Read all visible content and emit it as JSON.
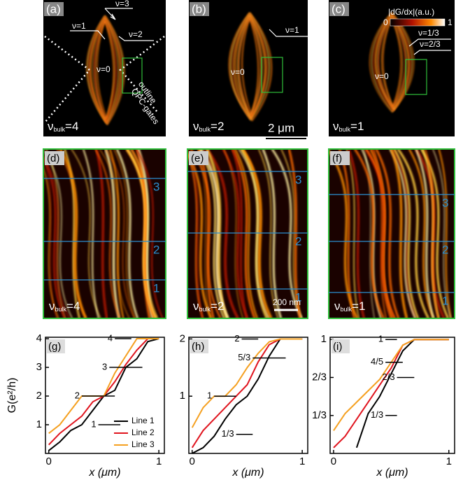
{
  "panels": [
    {
      "label": "(a)",
      "annotations": [
        "ν=3",
        "ν=1",
        "ν=2",
        "ν=0",
        "outline",
        "QPC-gates"
      ],
      "bulk": {
        "symbol": "ν",
        "sub": "bulk",
        "value": "=4"
      }
    },
    {
      "label": "(b)",
      "annotations": [
        "ν=1",
        "ν=0"
      ],
      "bulk": {
        "symbol": "ν",
        "sub": "bulk",
        "value": "=2"
      },
      "scale_bar": "2 μm"
    },
    {
      "label": "(c)",
      "annotations": [
        "ν=1/3",
        "ν=2/3",
        "ν=0"
      ],
      "bulk": {
        "symbol": "ν",
        "sub": "bulk",
        "value": "=1"
      },
      "colorbar": {
        "title": "|dG/dx|(a.u.)",
        "min": "0",
        "max": "1"
      }
    }
  ],
  "zoom_panels": [
    {
      "label": "(d)",
      "line_labels": [
        "3",
        "2",
        "1"
      ],
      "bulk": {
        "symbol": "ν",
        "sub": "bulk",
        "value": "=4"
      }
    },
    {
      "label": "(e)",
      "line_labels": [
        "3",
        "2",
        "1"
      ],
      "bulk": {
        "symbol": "ν",
        "sub": "bulk",
        "value": "=2"
      },
      "scale_bar": "200 nm"
    },
    {
      "label": "(f)",
      "line_labels": [
        "3",
        "2",
        "1"
      ],
      "bulk": {
        "symbol": "ν",
        "sub": "bulk",
        "value": "=1"
      }
    }
  ],
  "chart_data": [
    {
      "type": "line",
      "title": "(g)",
      "xlabel": "x (μm)",
      "ylabel": "G(e²/h)",
      "x": [
        0,
        0.1,
        0.2,
        0.3,
        0.4,
        0.5,
        0.6,
        0.7,
        0.8,
        0.9,
        1
      ],
      "series": [
        {
          "name": "Line 1",
          "color": "#000000",
          "values": [
            0.1,
            0.4,
            0.8,
            1.0,
            1.5,
            2.0,
            2.2,
            3.0,
            3.3,
            3.9,
            4
          ]
        },
        {
          "name": "Line 2",
          "color": "#e0141e",
          "values": [
            0.3,
            0.7,
            1.0,
            1.3,
            1.8,
            2.0,
            2.5,
            3.1,
            3.6,
            4,
            4
          ]
        },
        {
          "name": "Line 3",
          "color": "#f5a020",
          "values": [
            0.7,
            1.0,
            1.5,
            2.0,
            2.0,
            2.0,
            2.8,
            3.4,
            4,
            4,
            4
          ]
        }
      ],
      "plateaus": [
        {
          "label": "4",
          "value": 4,
          "x": [
            0.6,
            0.75
          ]
        },
        {
          "label": "3",
          "value": 3,
          "x": [
            0.55,
            0.85
          ]
        },
        {
          "label": "2",
          "value": 2,
          "x": [
            0.3,
            0.6
          ]
        },
        {
          "label": "1",
          "value": 1,
          "x": [
            0.45,
            0.65
          ]
        }
      ],
      "xlim": [
        -0.03,
        1.05
      ],
      "ylim": [
        0,
        4.05
      ],
      "xticks": [
        0,
        1
      ],
      "yticks": [
        1,
        2,
        3,
        4
      ],
      "legend": "lower right"
    },
    {
      "type": "line",
      "title": "(h)",
      "xlabel": "x (μm)",
      "x": [
        0,
        0.1,
        0.2,
        0.3,
        0.4,
        0.5,
        0.6,
        0.7,
        0.8,
        0.9,
        1
      ],
      "series": [
        {
          "name": "Line 1",
          "color": "#000000",
          "values": [
            0,
            0.1,
            0.3,
            0.6,
            0.85,
            1.0,
            1.3,
            1.7,
            2,
            2,
            2
          ]
        },
        {
          "name": "Line 2",
          "color": "#e0141e",
          "values": [
            0.1,
            0.4,
            0.6,
            0.8,
            1.0,
            1.2,
            1.6,
            1.9,
            2,
            2,
            2
          ]
        },
        {
          "name": "Line 3",
          "color": "#f5a020",
          "values": [
            0.45,
            0.8,
            1.0,
            1.0,
            1.2,
            1.5,
            1.75,
            1.95,
            2,
            2,
            2
          ]
        }
      ],
      "plateaus": [
        {
          "label": "2",
          "value": 2,
          "x": [
            0.45,
            0.6
          ]
        },
        {
          "label": "5/3",
          "value": 1.667,
          "x": [
            0.55,
            0.85
          ]
        },
        {
          "label": "1",
          "value": 1,
          "x": [
            0.2,
            0.4
          ]
        },
        {
          "label": "1/3",
          "value": 0.333,
          "x": [
            0.4,
            0.55
          ]
        }
      ],
      "xlim": [
        -0.03,
        1.05
      ],
      "ylim": [
        0,
        2.03
      ],
      "xticks": [
        0,
        1
      ],
      "yticks": [
        1,
        2
      ]
    },
    {
      "type": "line",
      "title": "(i)",
      "xlabel": "x (μm)",
      "x": [
        0,
        0.1,
        0.2,
        0.3,
        0.4,
        0.5,
        0.6,
        0.7,
        0.8,
        0.9,
        1
      ],
      "series": [
        {
          "name": "Line 1",
          "color": "#000000",
          "values": [
            null,
            null,
            0.05,
            0.35,
            0.5,
            0.7,
            0.9,
            1,
            1,
            1,
            1
          ]
        },
        {
          "name": "Line 2",
          "color": "#e0141e",
          "values": [
            0.05,
            0.15,
            0.3,
            0.45,
            0.6,
            0.75,
            0.95,
            1,
            1,
            1,
            1
          ]
        },
        {
          "name": "Line 3",
          "color": "#f5a020",
          "values": [
            0.2,
            0.35,
            0.45,
            0.55,
            0.65,
            0.8,
            0.95,
            1,
            1,
            1,
            1
          ]
        }
      ],
      "plateaus": [
        {
          "label": "1",
          "value": 1,
          "x": [
            0.45,
            0.55
          ]
        },
        {
          "label": "4/5",
          "value": 0.8,
          "x": [
            0.45,
            0.6
          ]
        },
        {
          "label": "2/3",
          "value": 0.667,
          "x": [
            0.55,
            0.7
          ]
        },
        {
          "label": "1/3",
          "value": 0.333,
          "x": [
            0.45,
            0.55
          ]
        }
      ],
      "xlim": [
        -0.03,
        1.05
      ],
      "ylim": [
        0,
        1.02
      ],
      "xticks": [
        0,
        1
      ],
      "yticks": [
        {
          "value": 0.333,
          "label": "1/3"
        },
        {
          "value": 0.667,
          "label": "2/3"
        },
        1
      ]
    }
  ]
}
